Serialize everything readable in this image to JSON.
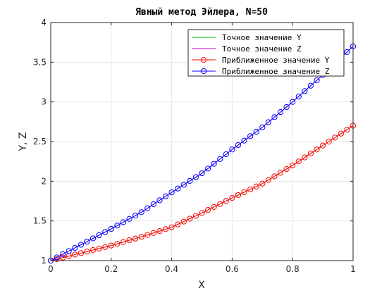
{
  "chart_data": {
    "type": "line",
    "title": "Явный метод Эйлера, N=50",
    "xlabel": "X",
    "ylabel": "Y, Z",
    "xlim": [
      0,
      1
    ],
    "ylim": [
      1,
      4
    ],
    "xticks": [
      0,
      0.2,
      0.4,
      0.6,
      0.8,
      1
    ],
    "xtick_labels": [
      "0",
      "0.2",
      "0.4",
      "0.6",
      "0.8",
      "1"
    ],
    "yticks": [
      1,
      1.5,
      2,
      2.5,
      3,
      3.5,
      4
    ],
    "ytick_labels": [
      "1",
      "1.5",
      "2",
      "2.5",
      "3",
      "3.5",
      "4"
    ],
    "grid": true,
    "legend_position": "top-right",
    "x": [
      0,
      0.1,
      0.2,
      0.3,
      0.4,
      0.5,
      0.6,
      0.7,
      0.8,
      0.9,
      1.0
    ],
    "series": [
      {
        "name": "Точное значение Y",
        "color": "#00c000",
        "style": "line",
        "values": [
          1.0,
          1.095,
          1.19,
          1.3,
          1.42,
          1.6,
          1.79,
          1.97,
          2.2,
          2.45,
          2.7
        ]
      },
      {
        "name": "Точное значение Z",
        "color": "#cc00cc",
        "style": "line",
        "values": [
          1.0,
          1.2,
          1.4,
          1.61,
          1.86,
          2.1,
          2.4,
          2.68,
          3.0,
          3.34,
          3.7
        ]
      },
      {
        "name": "Приближенное значение Y",
        "color": "#ff0000",
        "style": "line-circle",
        "values": [
          1.0,
          1.095,
          1.19,
          1.3,
          1.42,
          1.6,
          1.79,
          1.97,
          2.2,
          2.45,
          2.7
        ]
      },
      {
        "name": "Приближенное значение Z",
        "color": "#0000ff",
        "style": "line-circle",
        "values": [
          1.0,
          1.2,
          1.4,
          1.61,
          1.86,
          2.1,
          2.4,
          2.68,
          3.0,
          3.34,
          3.7
        ]
      }
    ],
    "marker_count": 51
  }
}
